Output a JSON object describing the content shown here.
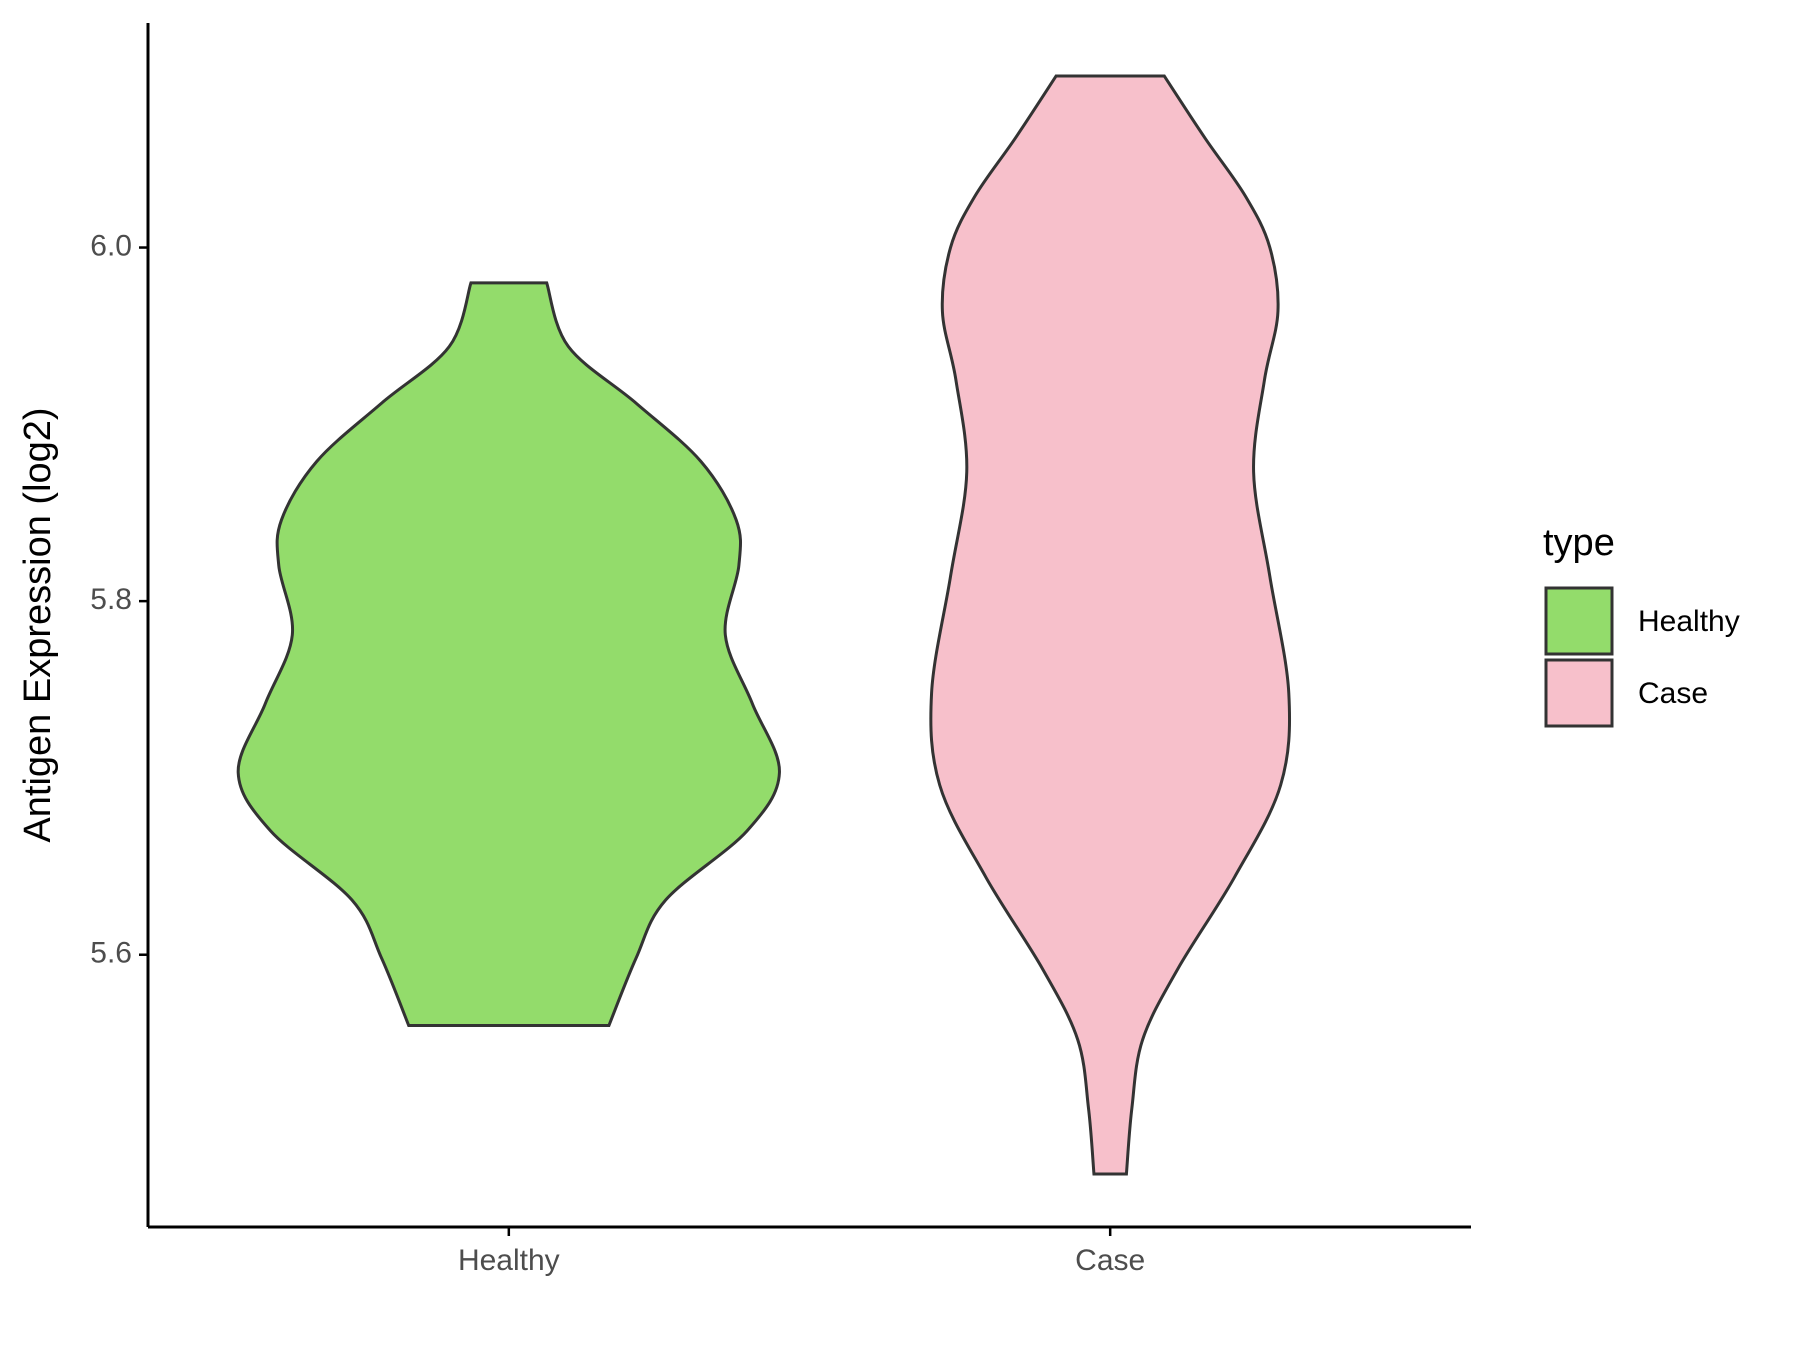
{
  "chart_data": {
    "type": "violin",
    "y_label": "Antigen Expression (log2)",
    "categories": [
      "Healthy",
      "Case"
    ],
    "legend_title": "type",
    "legend_position": "right",
    "ylim": [
      5.446,
      6.127
    ],
    "yticks": [
      {
        "value": 5.6,
        "label": "5.6"
      },
      {
        "value": 5.8,
        "label": "5.8"
      },
      {
        "value": 6.0,
        "label": "6.0"
      }
    ],
    "series": [
      {
        "name": "Healthy",
        "color": "#93dc6b",
        "values": [
          5.98,
          5.944,
          5.912,
          5.879,
          5.846,
          5.82,
          5.781,
          5.742,
          5.703,
          5.67,
          5.631,
          5.598,
          5.56
        ],
        "widths": [
          0.14,
          0.22,
          0.47,
          0.71,
          0.84,
          0.85,
          0.8,
          0.9,
          1.0,
          0.88,
          0.58,
          0.47,
          0.37
        ]
      },
      {
        "name": "Case",
        "color": "#f7c0cb",
        "values": [
          6.097,
          6.062,
          6.029,
          6.0,
          5.964,
          5.925,
          5.873,
          5.814,
          5.748,
          5.696,
          5.644,
          5.592,
          5.552,
          5.513,
          5.476
        ],
        "widths": [
          0.2,
          0.35,
          0.5,
          0.59,
          0.62,
          0.57,
          0.53,
          0.59,
          0.66,
          0.63,
          0.46,
          0.25,
          0.12,
          0.08,
          0.06
        ]
      }
    ]
  }
}
